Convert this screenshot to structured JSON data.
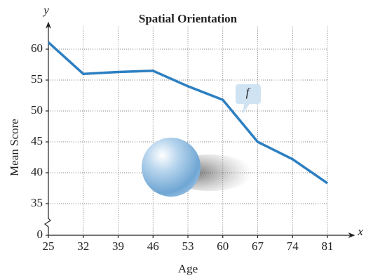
{
  "chart_data": {
    "type": "line",
    "title": "Spatial Orientation",
    "x_axis_label": "Age",
    "y_axis_label": "Mean Score",
    "x_axis_letter": "x",
    "y_axis_letter": "y",
    "annotation": "f",
    "x": [
      25,
      32,
      39,
      46,
      53,
      60,
      67,
      74,
      81
    ],
    "series": [
      {
        "name": "f",
        "color": "#2c7fc1",
        "values": [
          61.1,
          56.0,
          56.3,
          56.5,
          54.0,
          51.8,
          45.0,
          42.2,
          38.3
        ]
      }
    ],
    "xlim": [
      25,
      86
    ],
    "xticks": [
      25,
      32,
      39,
      46,
      53,
      60,
      67,
      74,
      81
    ],
    "ylim": [
      0,
      64
    ],
    "yticks": [
      0,
      35,
      40,
      45,
      50,
      55,
      60
    ],
    "axis_break": true,
    "grid": true
  }
}
